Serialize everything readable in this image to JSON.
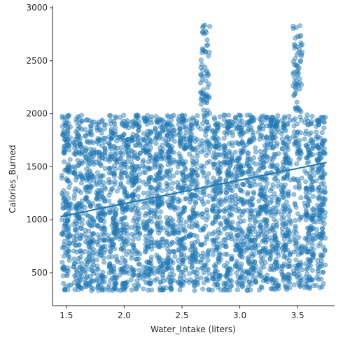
{
  "chart_data": {
    "type": "scatter",
    "title": "",
    "xlabel": "Water_Intake (liters)",
    "ylabel": "Calories_Burned",
    "xlim": [
      1.38,
      3.82
    ],
    "ylim": [
      190,
      3020
    ],
    "xticks": [
      1.5,
      2.0,
      2.5,
      3.0,
      3.5
    ],
    "xtick_labels": [
      "1.5",
      "2.0",
      "2.5",
      "3.0",
      "3.5"
    ],
    "yticks": [
      500,
      1000,
      1500,
      2000,
      2500,
      3000
    ],
    "ytick_labels": [
      "500",
      "1000",
      "1500",
      "2000",
      "2500",
      "3000"
    ],
    "grid": false,
    "point_color": "#1f77b4",
    "point_alpha": 0.45,
    "x_levels": [
      1.5,
      1.6,
      1.7,
      1.8,
      1.9,
      2.0,
      2.1,
      2.2,
      2.3,
      2.4,
      2.5,
      2.6,
      2.7,
      2.8,
      2.9,
      3.0,
      3.1,
      3.2,
      3.3,
      3.4,
      3.5,
      3.6,
      3.7
    ],
    "y_range_typical": [
      330,
      1990
    ],
    "y_range_peaks": [
      {
        "x": 2.7,
        "max": 2860
      },
      {
        "x": 3.5,
        "max": 2890
      }
    ],
    "regression_line": {
      "x": [
        1.45,
        3.75
      ],
      "y": [
        1030,
        1540
      ]
    }
  }
}
